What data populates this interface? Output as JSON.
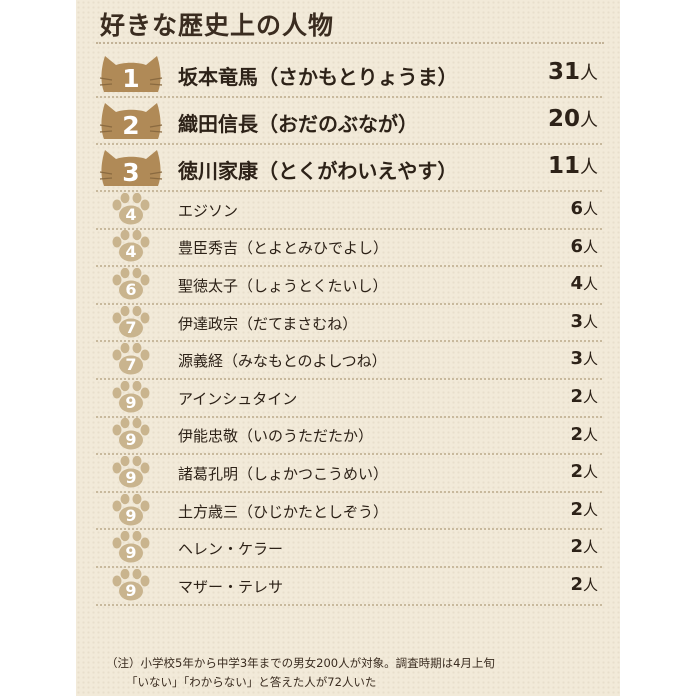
{
  "chart_data": {
    "type": "table",
    "title": "好きな歴史上の人物",
    "unit": "人",
    "rows": [
      {
        "rank": "1",
        "name": "坂本竜馬（さかもとりょうま）",
        "count": 31
      },
      {
        "rank": "2",
        "name": "織田信長（おだのぶなが）",
        "count": 20
      },
      {
        "rank": "3",
        "name": "徳川家康（とくがわいえやす）",
        "count": 11
      },
      {
        "rank": "4",
        "name": "エジソン",
        "count": 6
      },
      {
        "rank": "4",
        "name": "豊臣秀吉（とよとみひでよし）",
        "count": 6
      },
      {
        "rank": "6",
        "name": "聖徳太子（しょうとくたいし）",
        "count": 4
      },
      {
        "rank": "7",
        "name": "伊達政宗（だてまさむね）",
        "count": 3
      },
      {
        "rank": "7",
        "name": "源義経（みなもとのよしつね）",
        "count": 3
      },
      {
        "rank": "9",
        "name": "アインシュタイン",
        "count": 2
      },
      {
        "rank": "9",
        "name": "伊能忠敬（いのうただたか）",
        "count": 2
      },
      {
        "rank": "9",
        "name": "諸葛孔明（しょかつこうめい）",
        "count": 2
      },
      {
        "rank": "9",
        "name": "土方歳三（ひじかたとしぞう）",
        "count": 2
      },
      {
        "rank": "9",
        "name": "ヘレン・ケラー",
        "count": 2
      },
      {
        "rank": "9",
        "name": "マザー・テレサ",
        "count": 2
      }
    ],
    "notes": [
      "（注）小学校5年から中学3年までの男女200人が対象。調査時期は4月上旬",
      "「いない」「わからない」と答えた人が72人いた"
    ]
  },
  "colors": {
    "background": "#f2ead9",
    "cat_badge": "#b08a57",
    "paw_badge": "#c9b48e",
    "text": "#2d2218"
  },
  "icons": {
    "top_rank": "cat-face-icon",
    "other_rank": "paw-print-icon"
  }
}
